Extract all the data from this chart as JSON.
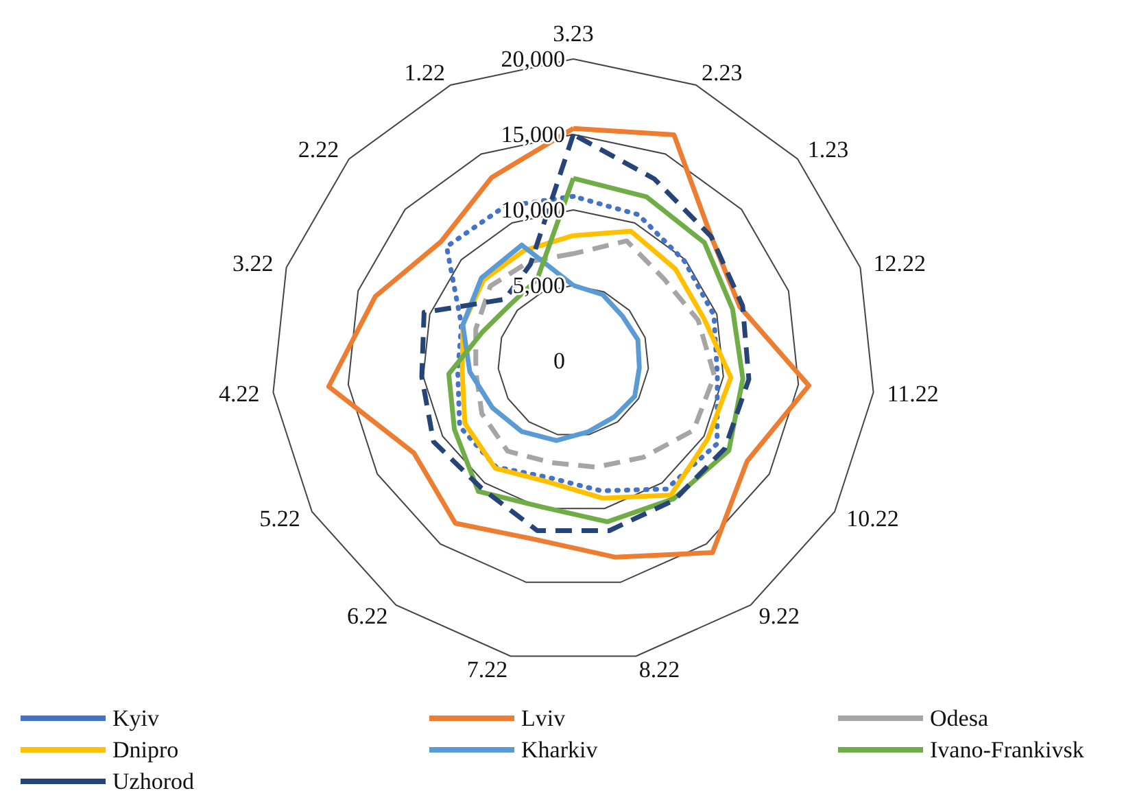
{
  "chart_data": {
    "type": "radar",
    "categories": [
      "3.23",
      "2.23",
      "1.23",
      "12.22",
      "11.22",
      "10.22",
      "9.22",
      "8.22",
      "7.22",
      "6.22",
      "5.22",
      "4.22",
      "3.22",
      "2.22",
      "1.22"
    ],
    "ylim": [
      0,
      20000
    ],
    "yticks": [
      0,
      {
        "value": 5000,
        "label": "5,000"
      },
      {
        "value": 10000,
        "label": "10,000"
      },
      {
        "value": 15000,
        "label": "15,000"
      },
      {
        "value": 20000,
        "label": "20,000"
      }
    ],
    "grid": true,
    "legend": "bottom",
    "marker": "none",
    "series": [
      {
        "name": "Kyiv",
        "color": "#4472c4",
        "line_style": "dotted",
        "values": [
          10900,
          10600,
          9900,
          9800,
          9600,
          11000,
          10500,
          8800,
          7900,
          8700,
          8700,
          7700,
          7800,
          11300,
          11200
        ]
      },
      {
        "name": "Lviv",
        "color": "#ed7d31",
        "line_style": "solid",
        "values": [
          15400,
          16400,
          12300,
          11600,
          15700,
          13300,
          15700,
          13300,
          12100,
          13300,
          12200,
          16300,
          13800,
          11800,
          13300
        ]
      },
      {
        "name": "Odesa",
        "color": "#a5a5a5",
        "line_style": "dashed",
        "values": [
          7100,
          8700,
          8100,
          8700,
          9400,
          9200,
          7900,
          7200,
          6900,
          7400,
          7000,
          6500,
          6800,
          7400,
          7200
        ]
      },
      {
        "name": "Dnipro",
        "color": "#ffc000",
        "line_style": "solid",
        "values": [
          8300,
          9400,
          9100,
          9100,
          10500,
          10300,
          11000,
          9300,
          8200,
          8800,
          8300,
          7400,
          7700,
          8000,
          8000
        ]
      },
      {
        "name": "Kharkiv",
        "color": "#5b9bd5",
        "line_style": "solid",
        "values": [
          5000,
          4800,
          4400,
          4500,
          4400,
          4700,
          4600,
          4800,
          5400,
          5800,
          6200,
          6900,
          7700,
          8200,
          8400
        ]
      },
      {
        "name": "Ivano-Frankivsk",
        "color": "#70ad47",
        "line_style": "solid",
        "values": [
          12100,
          11900,
          11700,
          11100,
          11300,
          11900,
          11300,
          10900,
          9900,
          10700,
          9100,
          8300,
          6300,
          5600,
          5900
        ]
      },
      {
        "name": "Uzhorod",
        "color": "#264478",
        "line_style": "dashed",
        "values": [
          15000,
          13200,
          12300,
          11800,
          11700,
          11600,
          11400,
          11500,
          11500,
          10400,
          10700,
          10100,
          10400,
          6100,
          7000
        ]
      }
    ]
  }
}
